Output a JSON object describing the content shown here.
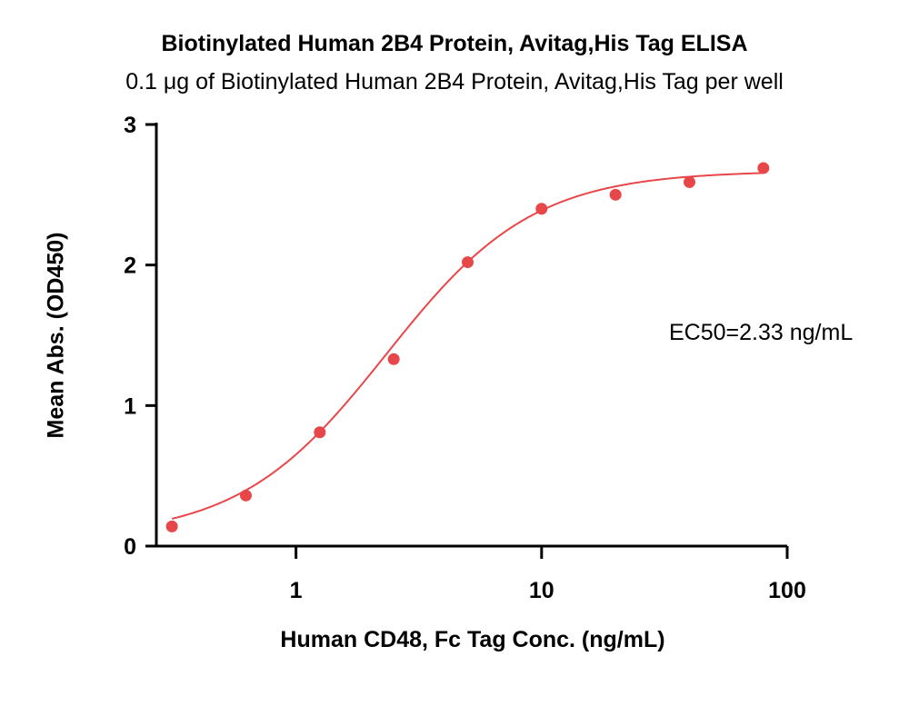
{
  "chart_data": {
    "type": "scatter",
    "title": "Biotinylated Human 2B4 Protein, Avitag,His Tag ELISA",
    "subtitle": "0.1 μg of Biotinylated Human 2B4 Protein, Avitag,His Tag per well",
    "xlabel": "Human CD48, Fc Tag Conc. (ng/mL)",
    "ylabel": "Mean Abs. (OD450)",
    "x_scale": "log",
    "xlim": [
      0.27,
      100
    ],
    "ylim": [
      0,
      3
    ],
    "x_ticks": [
      1,
      10,
      100
    ],
    "x_tick_labels": [
      "1",
      "10",
      "100"
    ],
    "y_ticks": [
      0,
      1,
      2,
      3
    ],
    "y_tick_labels": [
      "0",
      "1",
      "2",
      "3"
    ],
    "grid": false,
    "color": "#e8474a",
    "series": [
      {
        "x": [
          0.3125,
          0.625,
          1.25,
          2.5,
          5,
          10,
          20,
          40,
          80
        ],
        "y": [
          0.14,
          0.36,
          0.81,
          1.33,
          2.02,
          2.4,
          2.5,
          2.59,
          2.69
        ]
      }
    ],
    "fit": {
      "model": "4PL",
      "bottom": 0.06,
      "top": 2.67,
      "ec50": 2.33,
      "hill": 1.45
    },
    "annotation": "EC50=2.33 ng/mL"
  }
}
